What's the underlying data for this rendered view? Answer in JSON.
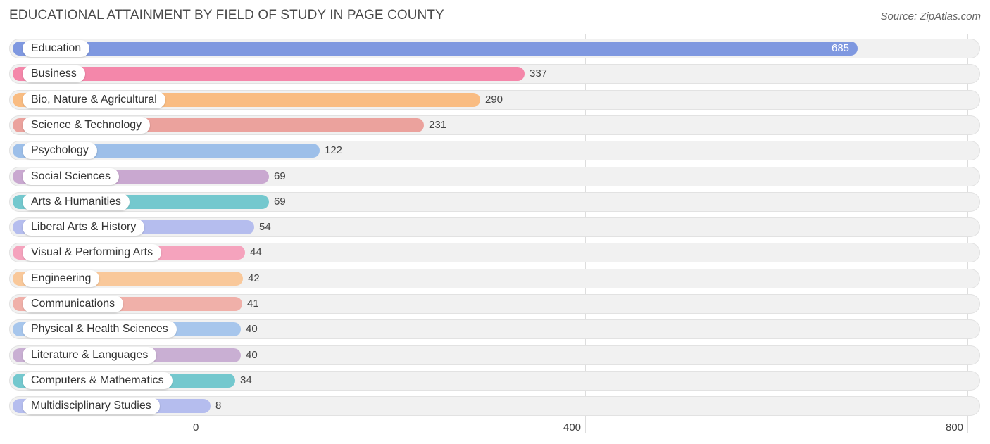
{
  "title": "EDUCATIONAL ATTAINMENT BY FIELD OF STUDY IN PAGE COUNTY",
  "source": "Source: ZipAtlas.com",
  "chart_data": {
    "type": "bar",
    "orientation": "horizontal",
    "title": "EDUCATIONAL ATTAINMENT BY FIELD OF STUDY IN PAGE COUNTY",
    "xlim": [
      0,
      800
    ],
    "ticks": [
      0,
      400,
      800
    ],
    "tick_labels": [
      "0",
      "400",
      "800"
    ],
    "grid": true,
    "categories": [
      "Education",
      "Business",
      "Bio, Nature & Agricultural",
      "Science & Technology",
      "Psychology",
      "Social Sciences",
      "Arts & Humanities",
      "Liberal Arts & History",
      "Visual & Performing Arts",
      "Engineering",
      "Communications",
      "Physical & Health Sciences",
      "Literature & Languages",
      "Computers & Mathematics",
      "Multidisciplinary Studies"
    ],
    "values": [
      685,
      337,
      290,
      231,
      122,
      69,
      69,
      54,
      44,
      42,
      41,
      40,
      40,
      34,
      8
    ],
    "colors": [
      "#7f98e0",
      "#f487aa",
      "#f9bc82",
      "#eba29d",
      "#9dbfe9",
      "#c9a8d0",
      "#74c8ce",
      "#b5bdee",
      "#f5a3bd",
      "#f9c89a",
      "#f0b0a9",
      "#a7c6ec",
      "#c9afd3",
      "#74c8ce",
      "#b5bdee"
    ]
  }
}
